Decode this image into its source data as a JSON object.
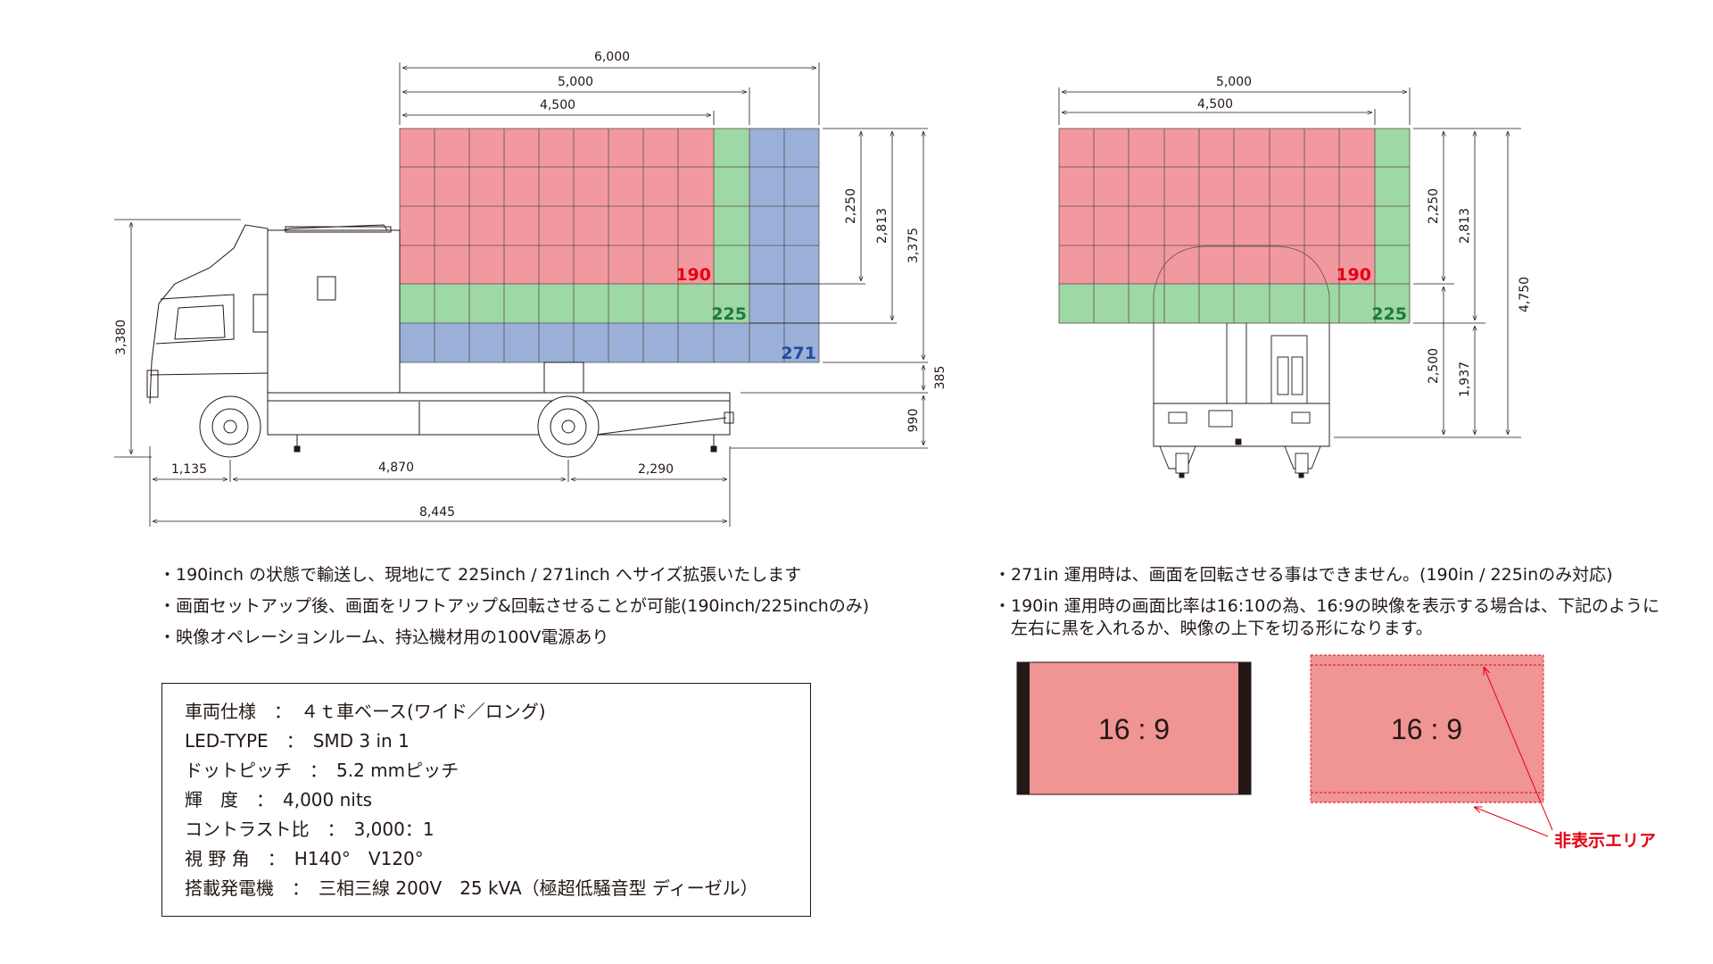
{
  "side_view": {
    "dims_top": [
      "6,000",
      "5,000",
      "4,500"
    ],
    "dims_right": [
      "2,250",
      "2,813",
      "3,375"
    ],
    "dims_lower_right": [
      "385",
      "990"
    ],
    "dim_left": "3,380",
    "dims_bottom": [
      "1,135",
      "4,870",
      "2,290"
    ],
    "dim_total": "8,445",
    "screen_labels": [
      "190",
      "225",
      "271"
    ]
  },
  "rear_view": {
    "dims_top": [
      "5,000",
      "4,500"
    ],
    "dims_right": [
      "2,250",
      "2,813",
      "4,750",
      "2,500",
      "1,937"
    ],
    "screen_labels": [
      "190",
      "225"
    ]
  },
  "notes_left": [
    "・190inch の状態で輸送し、現地にて 225inch / 271inch へサイズ拡張いたします",
    "・画面セットアップ後、画面をリフトアップ&回転させることが可能(190inch/225inchのみ)",
    "・映像オペレーションルーム、持込機材用の100V電源あり"
  ],
  "notes_right": [
    "・271in 運用時は、画面を回転させる事はできません。(190in / 225inのみ対応)",
    "・190in 運用時の画面比率は16:10の為、16:9の映像を表示する場合は、下記のように",
    "　左右に黒を入れるか、映像の上下を切る形になります。"
  ],
  "specs": [
    "車両仕様　：　４ｔ車ベース(ワイド／ロング)",
    "LED-TYPE　：　SMD 3 in 1",
    "ドットピッチ　：　5.2 mmピッチ",
    "輝　度　：　4,000 nits",
    "コントラスト比　：　3,000：1",
    "視 野 角　：　H140°　V120°",
    "搭載発電機　：　三相三線 200V　25 kVA（極超低騒音型 ディーゼル）"
  ],
  "ratio_examples": {
    "left_label": "16 : 9",
    "right_label": "16 : 9",
    "hidden_area_label": "非表示エリア"
  },
  "colors": {
    "red_panel": "#f2999f",
    "green_panel": "#9ed8a4",
    "blue_panel": "#9ab0d8",
    "ratio_fill": "#f09494",
    "accent_red": "#e60012",
    "label_green": "#1d7a3a",
    "label_blue": "#1d4fa0"
  }
}
